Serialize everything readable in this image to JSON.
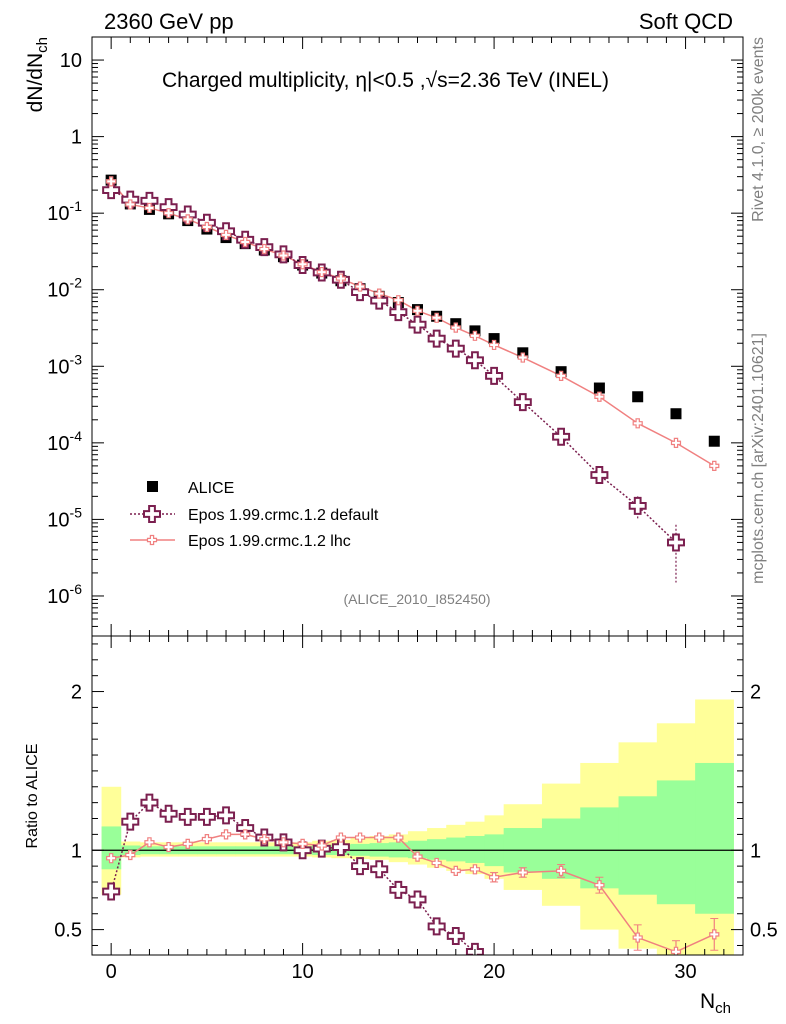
{
  "header": {
    "left_label": "2360 GeV pp",
    "right_label": "Soft QCD",
    "side_note_top": "Rivet 4.1.0, ≥ 200k events",
    "side_note_bottom": "mcplots.cern.ch [arXiv:2401.10621]",
    "analysis_id": "(ALICE_2010_I852450)"
  },
  "colors": {
    "data": "#000000",
    "epos_default": "#7b1f4f",
    "epos_lhc": "#f08080",
    "band_inner": "#99ff99",
    "band_outer": "#ffff99"
  },
  "chart_data": [
    {
      "type": "scatter",
      "panel": "main",
      "title_parts": {
        "prefix": "Charged multiplicity, ",
        "eta": "η",
        "cut": "|<0.5 ,",
        "sqrt": "√",
        "energy": "s=2.36 TeV (INEL)"
      },
      "ylabel_main": "dN/dN",
      "ylabel_sub": "ch",
      "yscale": "log",
      "ylim": [
        3e-07,
        20
      ],
      "xlim": [
        -1,
        33
      ],
      "y_ticks": [
        {
          "label": "10",
          "value": 10
        },
        {
          "label": "1",
          "value": 1
        },
        {
          "label": "10",
          "exp": "-1",
          "value": 0.1
        },
        {
          "label": "10",
          "exp": "-2",
          "value": 0.01
        },
        {
          "label": "10",
          "exp": "-3",
          "value": 0.001
        },
        {
          "label": "10",
          "exp": "-4",
          "value": 0.0001
        },
        {
          "label": "10",
          "exp": "-5",
          "value": 1e-05
        },
        {
          "label": "10",
          "exp": "-6",
          "value": 1e-06
        }
      ],
      "legend": {
        "position": "bottom-left",
        "entries": [
          "ALICE",
          "Epos 1.99.crmc.1.2 default",
          "Epos 1.99.crmc.1.2 lhc"
        ]
      },
      "series": [
        {
          "name": "ALICE",
          "x": [
            0,
            1,
            2,
            3,
            4,
            5,
            6,
            7,
            8,
            9,
            10,
            11,
            12,
            13,
            14,
            15,
            16,
            17,
            18,
            19,
            20,
            21.5,
            23.5,
            25.5,
            27.5,
            29.5,
            31.5
          ],
          "y": [
            0.27,
            0.132,
            0.112,
            0.098,
            0.08,
            0.062,
            0.048,
            0.04,
            0.033,
            0.027,
            0.021,
            0.0165,
            0.0131,
            0.0103,
            0.0082,
            0.0068,
            0.0055,
            0.0045,
            0.0036,
            0.0029,
            0.0023,
            0.0015,
            0.00085,
            0.00052,
            0.0004,
            0.00024,
            0.000105
          ]
        },
        {
          "name": "Epos 1.99.crmc.1.2 default",
          "x": [
            0,
            1,
            2,
            3,
            4,
            5,
            6,
            7,
            8,
            9,
            10,
            11,
            12,
            13,
            14,
            15,
            16,
            17,
            18,
            19,
            20,
            21.5,
            23.5,
            25.5,
            27.5,
            29.5
          ],
          "y": [
            0.2,
            0.15,
            0.145,
            0.12,
            0.096,
            0.075,
            0.058,
            0.045,
            0.036,
            0.029,
            0.021,
            0.0168,
            0.0135,
            0.0093,
            0.0072,
            0.0051,
            0.0035,
            0.0023,
            0.0017,
            0.0012,
            0.00075,
            0.00034,
            0.00012,
            3.8e-05,
            1.5e-05,
            5e-06
          ],
          "yerr": [
            0,
            0,
            0,
            0,
            0,
            0,
            0,
            0,
            0,
            0,
            0,
            0,
            0,
            0,
            0,
            0,
            0,
            0,
            0,
            0,
            0,
            3e-05,
            1.2e-05,
            8e-06,
            5e-06,
            3.5e-06
          ]
        },
        {
          "name": "Epos 1.99.crmc.1.2 lhc",
          "x": [
            0,
            1,
            2,
            3,
            4,
            5,
            6,
            7,
            8,
            9,
            10,
            11,
            12,
            13,
            14,
            15,
            16,
            17,
            18,
            19,
            20,
            21.5,
            23.5,
            25.5,
            27.5,
            29.5,
            31.5
          ],
          "y": [
            0.26,
            0.13,
            0.117,
            0.1,
            0.083,
            0.066,
            0.052,
            0.042,
            0.034,
            0.028,
            0.0215,
            0.017,
            0.014,
            0.011,
            0.0089,
            0.0073,
            0.0053,
            0.0043,
            0.0032,
            0.0025,
            0.0019,
            0.0013,
            0.00075,
            0.0004,
            0.00018,
            0.0001,
            5e-05
          ],
          "yerr": [
            0,
            0,
            0,
            0,
            0,
            0,
            0,
            0,
            0,
            0,
            0,
            0,
            0,
            0,
            0,
            0,
            0,
            0,
            0,
            0,
            0,
            0,
            0,
            2e-05,
            1e-05,
            8e-06,
            6e-06
          ]
        }
      ]
    },
    {
      "type": "scatter",
      "panel": "ratio",
      "ylabel": "Ratio to ALICE",
      "xlabel_main": "N",
      "xlabel_sub": "ch",
      "xlim": [
        -1,
        33
      ],
      "ylim": [
        0.34,
        2.35
      ],
      "x_ticks": [
        0,
        10,
        20,
        30
      ],
      "y_ticks": [
        {
          "label": "0.5",
          "value": 0.5
        },
        {
          "label": "1",
          "value": 1
        },
        {
          "label": "2",
          "value": 2
        }
      ],
      "bands": {
        "x_edges": [
          -0.5,
          0.5,
          1.5,
          2.5,
          3.5,
          4.5,
          5.5,
          6.5,
          7.5,
          8.5,
          9.5,
          10.5,
          11.5,
          12.5,
          13.5,
          14.5,
          15.5,
          16.5,
          17.5,
          18.5,
          19.5,
          20.5,
          22.5,
          24.5,
          26.5,
          28.5,
          30.5,
          32.5
        ],
        "inner_lo": [
          0.88,
          0.97,
          0.975,
          0.975,
          0.975,
          0.975,
          0.975,
          0.975,
          0.975,
          0.975,
          0.975,
          0.97,
          0.97,
          0.965,
          0.96,
          0.955,
          0.95,
          0.94,
          0.93,
          0.92,
          0.9,
          0.86,
          0.82,
          0.76,
          0.72,
          0.66,
          0.6
        ],
        "inner_hi": [
          1.15,
          1.03,
          1.025,
          1.025,
          1.025,
          1.025,
          1.025,
          1.025,
          1.025,
          1.025,
          1.025,
          1.03,
          1.035,
          1.04,
          1.045,
          1.05,
          1.06,
          1.07,
          1.08,
          1.09,
          1.1,
          1.14,
          1.2,
          1.27,
          1.34,
          1.44,
          1.55
        ],
        "outer_lo": [
          0.72,
          0.955,
          0.96,
          0.96,
          0.96,
          0.96,
          0.96,
          0.96,
          0.96,
          0.96,
          0.96,
          0.955,
          0.95,
          0.945,
          0.94,
          0.925,
          0.91,
          0.89,
          0.87,
          0.85,
          0.82,
          0.75,
          0.65,
          0.5,
          0.38,
          0.34,
          0.34
        ],
        "outer_hi": [
          1.4,
          1.055,
          1.05,
          1.05,
          1.05,
          1.05,
          1.05,
          1.05,
          1.05,
          1.05,
          1.05,
          1.06,
          1.065,
          1.08,
          1.09,
          1.1,
          1.12,
          1.14,
          1.16,
          1.18,
          1.22,
          1.29,
          1.42,
          1.55,
          1.68,
          1.8,
          1.95
        ]
      },
      "series": [
        {
          "name": "Epos 1.99.crmc.1.2 default",
          "x": [
            0,
            1,
            2,
            3,
            4,
            5,
            6,
            7,
            8,
            9,
            10,
            11,
            12,
            13,
            14,
            15,
            16,
            17,
            18,
            19
          ],
          "y": [
            0.74,
            1.18,
            1.3,
            1.23,
            1.21,
            1.21,
            1.22,
            1.14,
            1.08,
            1.05,
            1.0,
            1.01,
            1.02,
            0.9,
            0.88,
            0.75,
            0.69,
            0.52,
            0.46,
            0.36
          ],
          "yerr": [
            0,
            0,
            0,
            0,
            0,
            0,
            0,
            0,
            0,
            0,
            0,
            0,
            0,
            0,
            0,
            0,
            0,
            0,
            0.025,
            0.03
          ]
        },
        {
          "name": "Epos 1.99.crmc.1.2 lhc",
          "x": [
            0,
            1,
            2,
            3,
            4,
            5,
            6,
            7,
            8,
            9,
            10,
            11,
            12,
            13,
            14,
            15,
            16,
            17,
            18,
            19,
            20,
            21.5,
            23.5,
            25.5,
            27.5,
            29.5,
            31.5
          ],
          "y": [
            0.95,
            0.97,
            1.05,
            1.02,
            1.04,
            1.07,
            1.1,
            1.1,
            1.07,
            1.05,
            1.04,
            1.03,
            1.08,
            1.08,
            1.08,
            1.08,
            0.96,
            0.92,
            0.87,
            0.88,
            0.83,
            0.86,
            0.87,
            0.78,
            0.45,
            0.36,
            0.47
          ],
          "yerr": [
            0,
            0,
            0,
            0,
            0,
            0,
            0,
            0,
            0,
            0,
            0,
            0,
            0,
            0,
            0,
            0,
            0,
            0,
            0,
            0,
            0.03,
            0.03,
            0.04,
            0.05,
            0.08,
            0.07,
            0.1
          ]
        }
      ]
    }
  ]
}
